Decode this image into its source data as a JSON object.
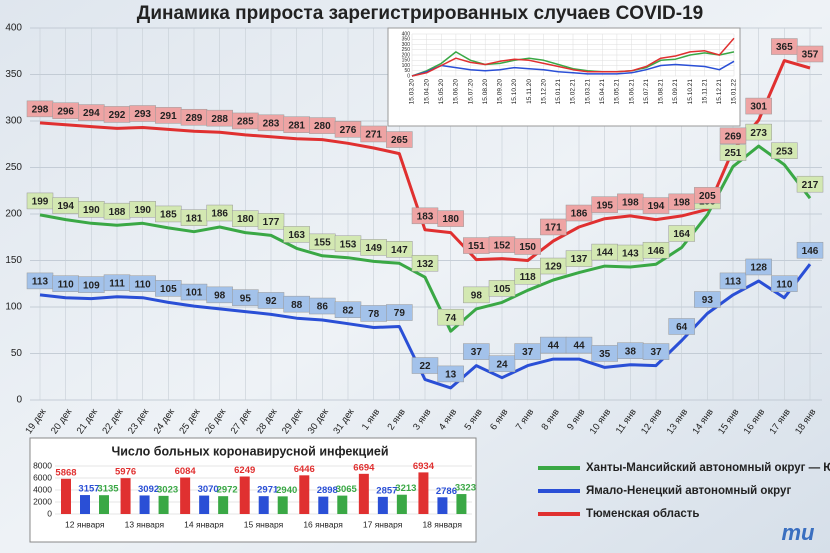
{
  "chart_data": [
    {
      "type": "line",
      "title": "Динамика прироста зарегистрированных случаев COVID-19",
      "categories": [
        "19 дек",
        "20 дек",
        "21 дек",
        "22 дек",
        "23 дек",
        "24 дек",
        "25 дек",
        "26 дек",
        "27 дек",
        "28 дек",
        "29 дек",
        "30 дек",
        "31 дек",
        "1 янв",
        "2 янв",
        "3 янв",
        "4 янв",
        "5 янв",
        "6 янв",
        "7 янв",
        "8 янв",
        "9 янв",
        "10 янв",
        "11 янв",
        "12 янв",
        "13 янв",
        "14 янв",
        "15 янв",
        "16 янв",
        "17 янв",
        "18 янв"
      ],
      "series": [
        {
          "name": "Ханты-Мансийский автономный округ — Югра",
          "color": "#3aa845",
          "label_color": "#d3e8b2",
          "values": [
            199,
            194,
            190,
            188,
            190,
            185,
            181,
            186,
            180,
            177,
            163,
            155,
            153,
            149,
            147,
            132,
            74,
            98,
            105,
            118,
            129,
            137,
            144,
            143,
            146,
            164,
            199,
            251,
            273,
            253,
            217
          ]
        },
        {
          "name": "Ямало-Ненецкий автономный округ",
          "color": "#2a4fd6",
          "label_color": "#a3c2ea",
          "values": [
            113,
            110,
            109,
            111,
            110,
            105,
            101,
            98,
            95,
            92,
            88,
            86,
            82,
            78,
            79,
            22,
            13,
            37,
            24,
            37,
            44,
            44,
            35,
            38,
            37,
            64,
            93,
            113,
            128,
            110,
            146
          ]
        },
        {
          "name": "Тюменская область",
          "color": "#e03030",
          "label_color": "#eea4a4",
          "values": [
            298,
            296,
            294,
            292,
            293,
            291,
            289,
            288,
            285,
            283,
            281,
            280,
            276,
            271,
            265,
            183,
            180,
            151,
            152,
            150,
            171,
            186,
            195,
            198,
            194,
            198,
            205,
            269,
            301,
            365,
            357
          ]
        }
      ],
      "ylim": [
        0,
        400
      ],
      "yticks": [
        0,
        50,
        100,
        150,
        200,
        250,
        300,
        350,
        400
      ],
      "grid": true
    },
    {
      "type": "line",
      "categories": [
        "15.03.20",
        "15.04.20",
        "15.05.20",
        "15.06.20",
        "15.07.20",
        "15.08.20",
        "15.09.20",
        "15.10.20",
        "15.11.20",
        "15.12.20",
        "15.01.21",
        "15.02.21",
        "15.03.21",
        "15.04.21",
        "15.05.21",
        "15.06.21",
        "15.07.21",
        "15.08.21",
        "15.09.21",
        "15.10.21",
        "15.11.21",
        "15.12.21",
        "15.01.22"
      ],
      "series": [
        {
          "color": "#3aa845",
          "values": [
            0,
            50,
            120,
            230,
            150,
            110,
            120,
            150,
            170,
            150,
            110,
            70,
            50,
            40,
            40,
            50,
            80,
            150,
            160,
            200,
            220,
            200,
            230
          ]
        },
        {
          "color": "#2a4fd6",
          "values": [
            0,
            40,
            100,
            80,
            60,
            50,
            60,
            80,
            70,
            60,
            40,
            30,
            20,
            20,
            20,
            30,
            60,
            100,
            110,
            100,
            90,
            60,
            140
          ]
        },
        {
          "color": "#e03030",
          "values": [
            0,
            30,
            100,
            170,
            130,
            110,
            140,
            160,
            150,
            120,
            90,
            60,
            40,
            40,
            40,
            50,
            90,
            170,
            190,
            230,
            240,
            200,
            360
          ]
        }
      ],
      "ylim": [
        0,
        400
      ],
      "yticks": [
        0,
        50,
        100,
        150,
        200,
        250,
        300,
        350,
        400
      ],
      "grid": true
    },
    {
      "type": "bar",
      "title": "Число больных коронавирусной инфекцией",
      "categories": [
        "12 января",
        "13 января",
        "14 января",
        "15 января",
        "16 января",
        "17 января",
        "18 января"
      ],
      "series": [
        {
          "color": "#e03030",
          "values": [
            5868,
            5976,
            6084,
            6249,
            6446,
            6694,
            6934
          ]
        },
        {
          "color": "#2a4fd6",
          "values": [
            3157,
            3092,
            3070,
            2971,
            2898,
            2857,
            2786
          ]
        },
        {
          "color": "#3aa845",
          "values": [
            3135,
            3023,
            2972,
            2940,
            3065,
            3213,
            3323
          ]
        }
      ],
      "ylim": [
        0,
        8000
      ],
      "yticks": [
        0,
        2000,
        4000,
        6000,
        8000
      ],
      "grid": true
    }
  ],
  "logo": "mu"
}
